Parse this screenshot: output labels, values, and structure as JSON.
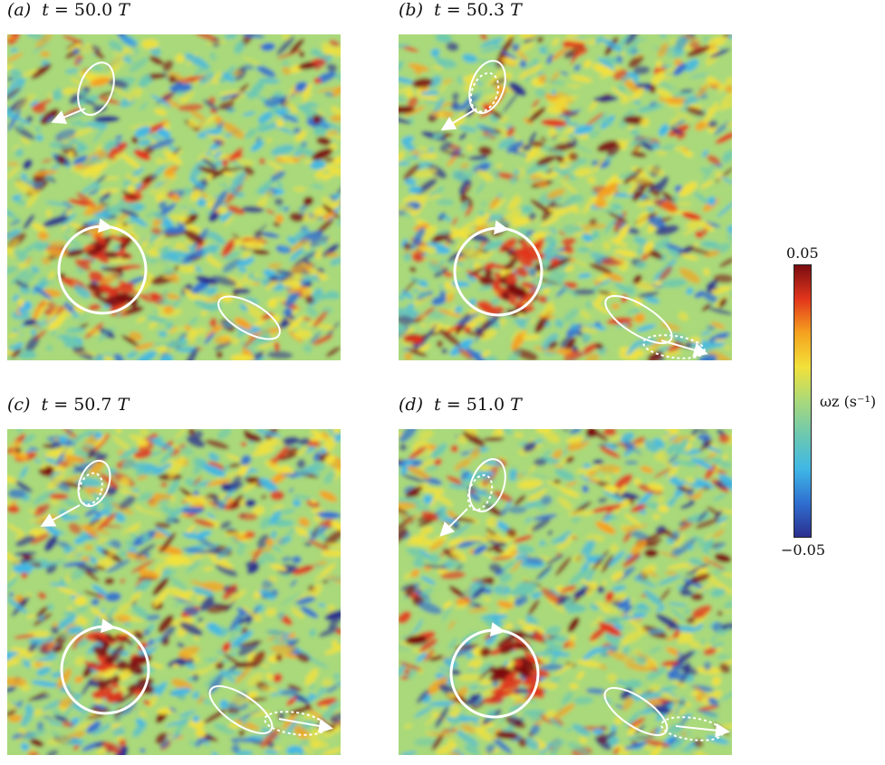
{
  "panels": [
    {
      "letter": "(a)",
      "t_value": "50.0",
      "t_unit": "T"
    },
    {
      "letter": "(b)",
      "t_value": "50.3",
      "t_unit": "T"
    },
    {
      "letter": "(c)",
      "t_value": "50.7",
      "t_unit": "T"
    },
    {
      "letter": "(d)",
      "t_value": "51.0",
      "t_unit": "T"
    }
  ],
  "colorbar": {
    "max_label": "0.05",
    "min_label": "−0.05",
    "quantity": "ωz (s⁻¹)",
    "colors": [
      "#2b2f8e",
      "#2f6fd0",
      "#3fb7e6",
      "#6cc8b0",
      "#a9d97a",
      "#f2e13a",
      "#f5a21e",
      "#e2361c",
      "#7a0c10"
    ]
  },
  "colors": {
    "field_background": "#a9d97a",
    "annotation": "#ffffff"
  }
}
